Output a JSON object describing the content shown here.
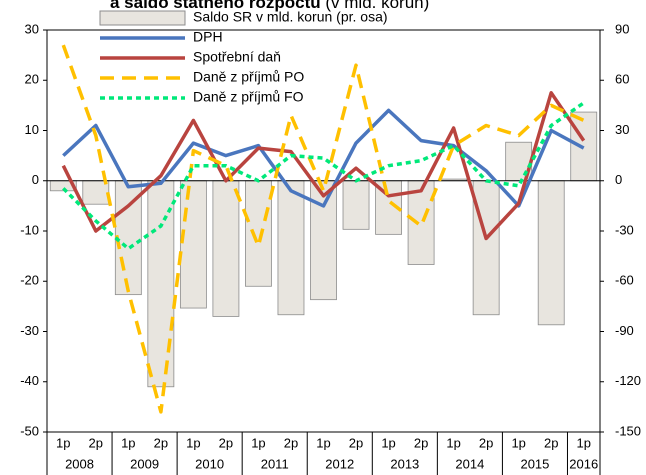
{
  "chart_data": {
    "type": "bar",
    "title": "a saldo štátneho rozpočtu",
    "subtitle": "(v mld. korún)",
    "categories": [
      "1p",
      "2p",
      "1p",
      "2p",
      "1p",
      "2p",
      "1p",
      "2p",
      "1p",
      "2p",
      "1p",
      "2p",
      "1p",
      "2p",
      "1p",
      "2p",
      "1p"
    ],
    "years": [
      "2008",
      "2009",
      "2010",
      "2011",
      "2012",
      "2013",
      "2014",
      "2015",
      "2016"
    ],
    "series": [
      {
        "name": "Saldo SR v mld. korun (pr. osa)",
        "type": "bar",
        "axis": "y2",
        "color": "#e8e5df",
        "values": [
          -6,
          -14,
          -68,
          -123,
          -76,
          -81,
          -63,
          -80,
          -71,
          -29,
          -32,
          -50,
          1,
          -80,
          23,
          -86,
          41
        ]
      },
      {
        "name": "DPH",
        "type": "line",
        "color": "#4a76be",
        "dash": "solid",
        "values": [
          5,
          11,
          -1.2,
          -0.5,
          7.5,
          5,
          7,
          -2,
          -5,
          7.5,
          14,
          8,
          7,
          2,
          -5,
          10,
          6.5
        ]
      },
      {
        "name": "Spotřební daň",
        "type": "line",
        "color": "#b9443f",
        "dash": "solid",
        "values": [
          3,
          -10,
          -5,
          1,
          12,
          0,
          6.5,
          5.8,
          -3,
          2.5,
          -3,
          -2,
          10.5,
          -11.5,
          -4.5,
          17.5,
          8
        ]
      },
      {
        "name": "Daně z příjmů  PO",
        "type": "line",
        "color": "#ffc000",
        "dash": "dashed",
        "values": [
          27,
          9,
          -22,
          -46,
          6,
          3,
          -13,
          13,
          -2,
          23,
          -4,
          -9,
          7,
          11,
          9,
          15,
          12
        ]
      },
      {
        "name": "Daně z příjmů  FO",
        "type": "line",
        "color": "#00e87a",
        "dash": "dotted",
        "values": [
          -1.5,
          -8,
          -13.5,
          -9,
          3,
          3,
          0,
          5,
          4.5,
          0,
          3,
          4,
          7,
          0,
          -1,
          11,
          15.5
        ]
      }
    ],
    "ylim": [
      -50,
      30
    ],
    "yticks": [
      -50,
      -40,
      -30,
      -20,
      -10,
      0,
      10,
      20,
      30
    ],
    "y2lim": [
      -150,
      90
    ],
    "y2ticks": [
      -150,
      -120,
      -90,
      -60,
      -30,
      0,
      30,
      60,
      90
    ],
    "legend": "upper left"
  }
}
